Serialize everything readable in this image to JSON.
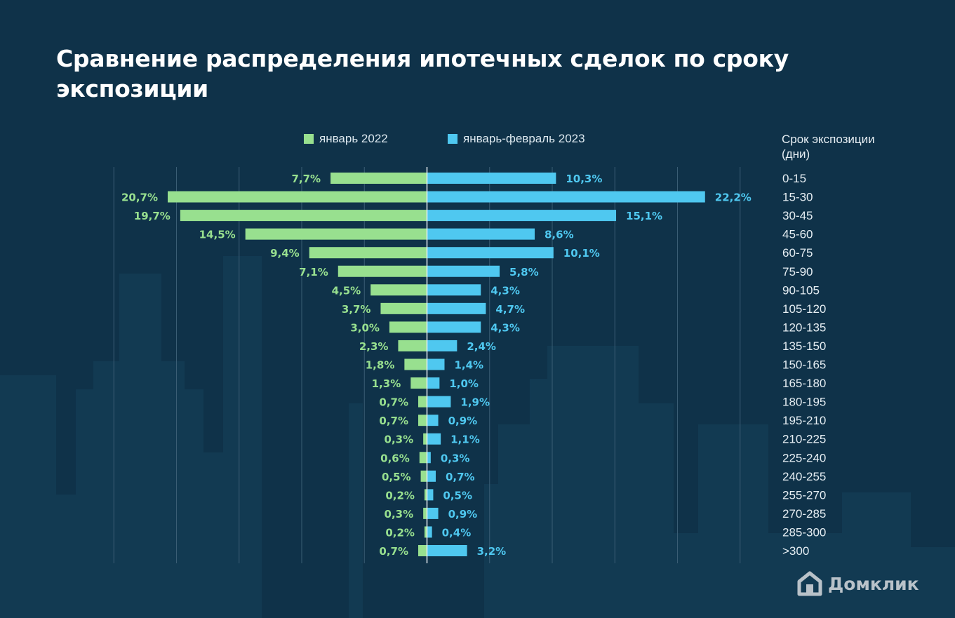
{
  "title": "Сравнение распределения ипотечных сделок по сроку экспозиции",
  "legend": {
    "left_label": "январь 2022",
    "right_label": "январь-февраль 2023"
  },
  "axis_title": "Срок экспозиции\n(дни)",
  "logo_text": "Домклик",
  "colors": {
    "background": "#0f3249",
    "series_2022": "#98e08f",
    "series_2023": "#4fc8f0",
    "label_2022": "#98e08f",
    "label_2023": "#4fc8f0",
    "center_line": "#e8eef2",
    "grid": "#3a5d74"
  },
  "chart_data": {
    "type": "bar",
    "orientation": "horizontal-diverging",
    "title": "Сравнение распределения ипотечных сделок по сроку экспозиции",
    "ylabel": "Срок экспозиции (дни)",
    "categories": [
      "0-15",
      "15-30",
      "30-45",
      "45-60",
      "60-75",
      "75-90",
      "90-105",
      "105-120",
      "120-135",
      "135-150",
      "150-165",
      "165-180",
      "180-195",
      "195-210",
      "210-225",
      "225-240",
      "240-255",
      "255-270",
      "270-285",
      "285-300",
      ">300"
    ],
    "series": [
      {
        "name": "январь 2022",
        "side": "left",
        "values": [
          7.7,
          20.7,
          19.7,
          14.5,
          9.4,
          7.1,
          4.5,
          3.7,
          3.0,
          2.3,
          1.8,
          1.3,
          0.7,
          0.7,
          0.3,
          0.6,
          0.5,
          0.2,
          0.3,
          0.2,
          0.7
        ],
        "labels": [
          "7,7%",
          "20,7%",
          "19,7%",
          "14,5%",
          "9,4%",
          "7,1%",
          "4,5%",
          "3,7%",
          "3,0%",
          "2,3%",
          "1,8%",
          "1,3%",
          "0,7%",
          "0,7%",
          "0,3%",
          "0,6%",
          "0,5%",
          "0,2%",
          "0,3%",
          "0,2%",
          "0,7%"
        ]
      },
      {
        "name": "январь-февраль 2023",
        "side": "right",
        "values": [
          10.3,
          22.2,
          15.1,
          8.6,
          10.1,
          5.8,
          4.3,
          4.7,
          4.3,
          2.4,
          1.4,
          1.0,
          1.9,
          0.9,
          1.1,
          0.3,
          0.7,
          0.5,
          0.9,
          0.4,
          3.2
        ],
        "labels": [
          "10,3%",
          "22,2%",
          "15,1%",
          "8,6%",
          "10,1%",
          "5,8%",
          "4,3%",
          "4,7%",
          "4,3%",
          "2,4%",
          "1,4%",
          "1,0%",
          "1,9%",
          "0,9%",
          "1,1%",
          "0,3%",
          "0,7%",
          "0,5%",
          "0,9%",
          "0,4%",
          "3,2%"
        ]
      }
    ],
    "xlim": [
      -25,
      25
    ],
    "grid": true
  }
}
